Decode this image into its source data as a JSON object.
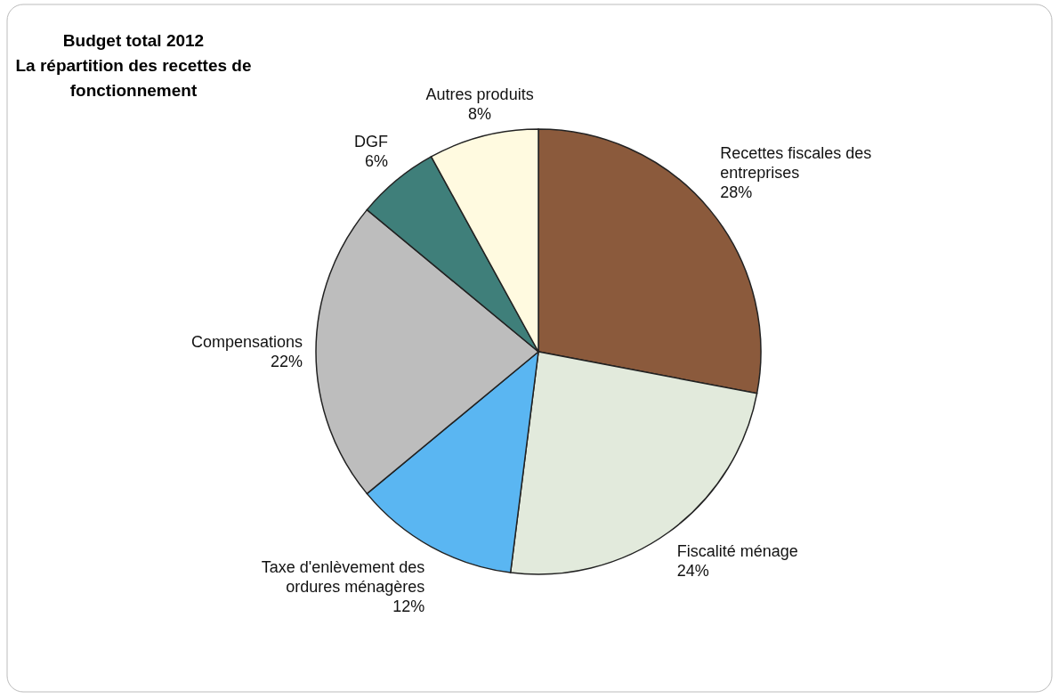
{
  "chart_data": {
    "type": "pie",
    "title": "Budget total 2012",
    "subtitle": "La répartition des recettes de fonctionnement",
    "categories": [
      "Recettes fiscales des entreprises",
      "Fiscalité ménage",
      "Taxe d'enlèvement des ordures ménagères",
      "Compensations",
      "DGF",
      "Autres produits"
    ],
    "values": [
      28,
      24,
      12,
      22,
      6,
      8
    ],
    "value_labels": [
      "28%",
      "24%",
      "12%",
      "22%",
      "6%",
      "8%"
    ],
    "colors": [
      "#8b5a3c",
      "#e2eadc",
      "#5ab6f2",
      "#bdbdbd",
      "#3f7f7a",
      "#fffae0"
    ],
    "legend": false
  }
}
